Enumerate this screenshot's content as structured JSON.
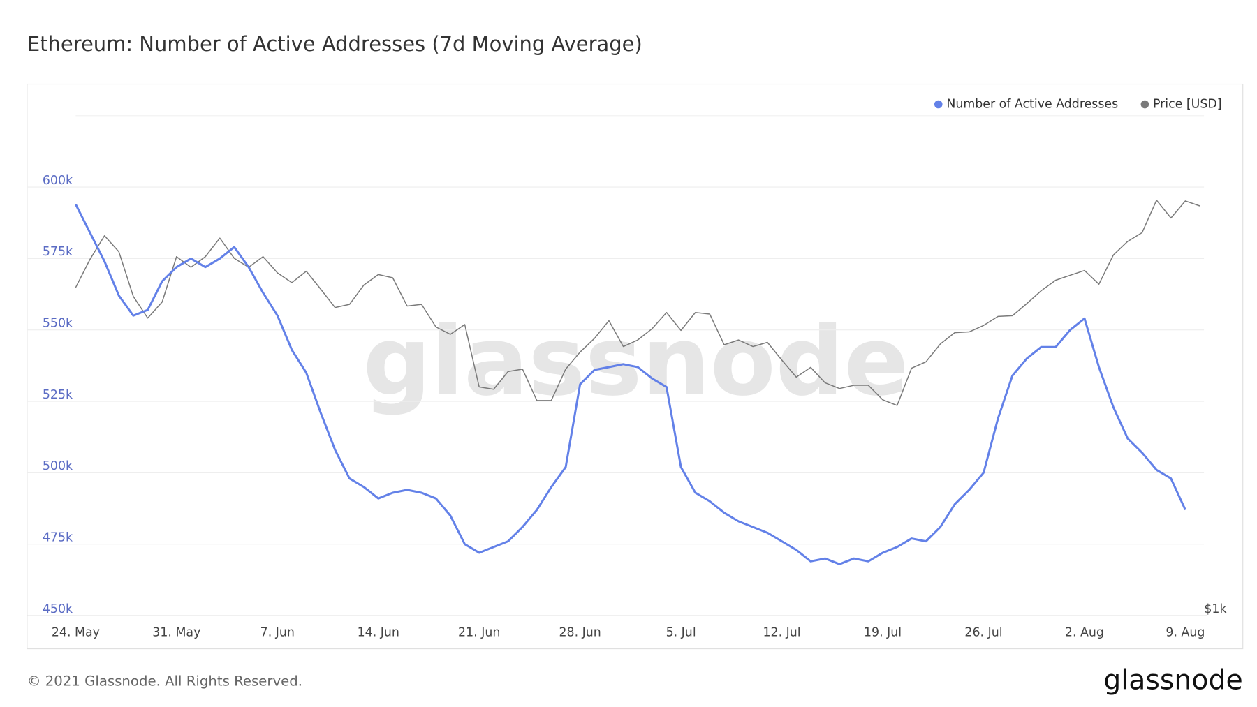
{
  "chart_data": {
    "type": "line",
    "title": "Ethereum: Number of Active Addresses (7d Moving Average)",
    "watermark": "glassnode",
    "copyright": "© 2021 Glassnode. All Rights Reserved.",
    "logo": "glassnode",
    "categories": [
      "24. May",
      null,
      null,
      null,
      null,
      null,
      null,
      "31. May",
      null,
      null,
      null,
      null,
      null,
      null,
      "7. Jun",
      null,
      null,
      null,
      null,
      null,
      null,
      "14. Jun",
      null,
      null,
      null,
      null,
      null,
      null,
      "21. Jun",
      null,
      null,
      null,
      null,
      null,
      null,
      "28. Jun",
      null,
      null,
      null,
      null,
      null,
      null,
      "5. Jul",
      null,
      null,
      null,
      null,
      null,
      null,
      "12. Jul",
      null,
      null,
      null,
      null,
      null,
      null,
      "19. Jul",
      null,
      null,
      null,
      null,
      null,
      null,
      "26. Jul",
      null,
      null,
      null,
      null,
      null,
      null,
      "2. Aug",
      null,
      null,
      null,
      null,
      null,
      null,
      "9. Aug",
      null
    ],
    "ylim": [
      450000,
      625000
    ],
    "yticks": [
      {
        "value": 450000,
        "label": "450k"
      },
      {
        "value": 475000,
        "label": "475k"
      },
      {
        "value": 500000,
        "label": "500k"
      },
      {
        "value": 525000,
        "label": "525k"
      },
      {
        "value": 550000,
        "label": "550k"
      },
      {
        "value": 575000,
        "label": "575k"
      },
      {
        "value": 600000,
        "label": "600k"
      }
    ],
    "y2lim": [
      1000,
      4200
    ],
    "y2log": true,
    "y2ticks": [
      {
        "value": 1000,
        "label": "$1k"
      }
    ],
    "grid": true,
    "legend": "top-right",
    "series": [
      {
        "name": "Number of Active Addresses",
        "color": "#6381e8",
        "axis": "y",
        "values": [
          594000,
          584000,
          574000,
          562000,
          555000,
          557000,
          567000,
          572000,
          575000,
          572000,
          575000,
          579000,
          572000,
          563000,
          555000,
          543000,
          535000,
          521000,
          508000,
          498000,
          495000,
          491000,
          493000,
          494000,
          493000,
          491000,
          485000,
          475000,
          472000,
          474000,
          476000,
          481000,
          487000,
          495000,
          502000,
          531000,
          536000,
          537000,
          538000,
          537000,
          533000,
          530000,
          502000,
          493000,
          490000,
          486000,
          483000,
          481000,
          479000,
          476000,
          473000,
          469000,
          470000,
          468000,
          470000,
          469000,
          472000,
          474000,
          477000,
          476000,
          481000,
          489000,
          494000,
          500000,
          519000,
          534000,
          540000,
          544000,
          544000,
          550000,
          554000,
          537000,
          523000,
          512000,
          507000,
          501000,
          498000,
          487000,
          null
        ]
      },
      {
        "name": "Price [USD]",
        "color": "#7a7a7a",
        "axis": "y2",
        "values": [
          2565,
          2782,
          2976,
          2841,
          2500,
          2349,
          2460,
          2802,
          2718,
          2802,
          2955,
          2789,
          2718,
          2802,
          2675,
          2601,
          2687,
          2553,
          2421,
          2443,
          2583,
          2662,
          2637,
          2432,
          2443,
          2290,
          2242,
          2306,
          1928,
          1915,
          2015,
          2029,
          1854,
          1854,
          2029,
          2131,
          2216,
          2332,
          2165,
          2206,
          2279,
          2387,
          2268,
          2387,
          2376,
          2176,
          2206,
          2165,
          2191,
          2082,
          1983,
          2039,
          1951,
          1919,
          1937,
          1937,
          1858,
          1828,
          2034,
          2072,
          2181,
          2253,
          2258,
          2300,
          2360,
          2365,
          2449,
          2541,
          2619,
          2656,
          2693,
          2589,
          2815,
          2928,
          3003,
          3295,
          3131,
          3288,
          3242
        ]
      }
    ]
  }
}
